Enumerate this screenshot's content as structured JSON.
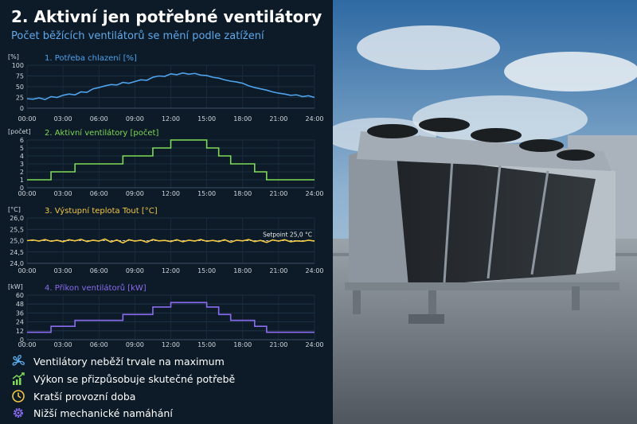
{
  "title": "2. Aktivní jen potřebné ventilátory",
  "subtitle": "Počet běžících ventilátorů se mění podle zatížení",
  "time_ticks": [
    "00:00",
    "03:00",
    "06:00",
    "09:00",
    "12:00",
    "15:00",
    "18:00",
    "21:00",
    "24:00"
  ],
  "chart_data": [
    {
      "type": "line",
      "title": "1. Potřeba chlazení [%]",
      "unit": "[%]",
      "color": "#4ea3ec",
      "ylim": [
        0,
        100
      ],
      "yticks": [
        "0",
        "25",
        "50",
        "75",
        "100"
      ],
      "grid": true,
      "x_hours": [
        0,
        0.5,
        1,
        1.5,
        2,
        2.5,
        3,
        3.5,
        4,
        4.5,
        5,
        5.5,
        6,
        6.5,
        7,
        7.5,
        8,
        8.5,
        9,
        9.5,
        10,
        10.5,
        11,
        11.5,
        12,
        12.5,
        13,
        13.5,
        14,
        14.5,
        15,
        15.5,
        16,
        16.5,
        17,
        17.5,
        18,
        18.5,
        19,
        19.5,
        20,
        20.5,
        21,
        21.5,
        22,
        22.5,
        23,
        23.5,
        24
      ],
      "values": [
        22,
        21,
        24,
        20,
        27,
        25,
        30,
        33,
        31,
        38,
        37,
        45,
        48,
        52,
        55,
        54,
        60,
        58,
        62,
        66,
        65,
        72,
        75,
        74,
        80,
        78,
        82,
        79,
        81,
        77,
        76,
        72,
        70,
        66,
        63,
        61,
        58,
        52,
        48,
        45,
        42,
        38,
        35,
        33,
        30,
        31,
        27,
        29,
        25
      ]
    },
    {
      "type": "line",
      "step": true,
      "title": "2. Aktivní ventilátory [počet]",
      "unit": "[počet]",
      "color": "#7ed957",
      "ylim": [
        0,
        6
      ],
      "yticks": [
        "0",
        "1",
        "2",
        "3",
        "4",
        "5",
        "6"
      ],
      "grid": true,
      "x_hours": [
        0,
        2,
        4,
        6,
        8,
        9,
        10.5,
        12,
        14,
        15,
        16,
        17,
        18,
        19,
        20,
        22,
        24
      ],
      "values": [
        1,
        2,
        3,
        3,
        4,
        4,
        5,
        6,
        6,
        5,
        4,
        3,
        3,
        2,
        1,
        1,
        1
      ]
    },
    {
      "type": "line",
      "title": "3. Výstupní teplota Tout [°C]",
      "unit": "[°C]",
      "color": "#f2c744",
      "ylim": [
        24.0,
        26.0
      ],
      "yticks": [
        "24,0",
        "24,5",
        "25,0",
        "25,5",
        "26,0"
      ],
      "grid": true,
      "setpoint": 25.0,
      "setpoint_label": "Setpoint 25,0 °C",
      "x_hours": [
        0,
        0.5,
        1,
        1.5,
        2,
        2.5,
        3,
        3.5,
        4,
        4.5,
        5,
        5.5,
        6,
        6.5,
        7,
        7.5,
        8,
        8.5,
        9,
        9.5,
        10,
        10.5,
        11,
        11.5,
        12,
        12.5,
        13,
        13.5,
        14,
        14.5,
        15,
        15.5,
        16,
        16.5,
        17,
        17.5,
        18,
        18.5,
        19,
        19.5,
        20,
        20.5,
        21,
        21.5,
        22,
        22.5,
        23,
        23.5,
        24
      ],
      "values": [
        25.0,
        25.03,
        24.98,
        25.05,
        24.97,
        25.02,
        24.95,
        25.04,
        24.99,
        25.06,
        24.96,
        25.02,
        24.98,
        25.07,
        24.94,
        25.03,
        24.9,
        25.04,
        24.98,
        25.02,
        24.93,
        25.05,
        24.99,
        25.01,
        24.96,
        25.04,
        24.95,
        25.02,
        24.98,
        25.05,
        24.97,
        25.01,
        24.96,
        25.04,
        24.93,
        25.02,
        24.99,
        25.05,
        24.96,
        25.01,
        24.92,
        25.03,
        24.98,
        25.04,
        24.95,
        24.99,
        24.97,
        25.02,
        24.98
      ]
    },
    {
      "type": "line",
      "step": true,
      "title": "4. Příkon ventilátorů [kW]",
      "unit": "[kW]",
      "color": "#8a6cf0",
      "ylim": [
        0,
        60
      ],
      "yticks": [
        "0",
        "12",
        "24",
        "36",
        "48",
        "60"
      ],
      "grid": true,
      "x_hours": [
        0,
        2,
        4,
        6,
        8,
        9,
        10.5,
        12,
        14,
        15,
        16,
        17,
        18,
        19,
        20,
        22,
        24
      ],
      "values": [
        10,
        18,
        26,
        26,
        34,
        34,
        44,
        50,
        50,
        44,
        34,
        26,
        26,
        18,
        10,
        10,
        10
      ]
    }
  ],
  "benefits": [
    {
      "icon": "fan-icon",
      "text": "Ventilátory neběží trvale na maximum"
    },
    {
      "icon": "trend-up-icon",
      "text": "Výkon se přizpůsobuje skutečné potřebě"
    },
    {
      "icon": "clock-icon",
      "text": "Kratší provozní doba"
    },
    {
      "icon": "gear-icon",
      "text": "Nižší mechanické namáhání"
    }
  ],
  "colors": {
    "background": "#0d1a27",
    "title": "#ffffff",
    "subtitle": "#5fa8ea",
    "grid": "#22384d",
    "icon": "#5fb3f5"
  }
}
